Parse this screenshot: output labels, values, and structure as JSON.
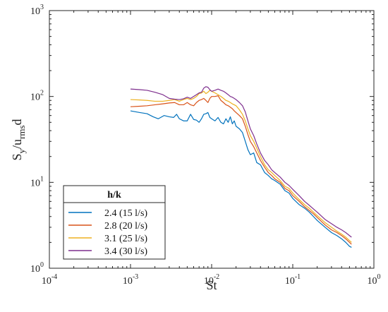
{
  "chart_data": {
    "type": "line",
    "title": "",
    "xlabel": "St",
    "ylabel": {
      "main": "S",
      "sub1": "y",
      "mid": "/u",
      "sub2": "rms",
      "tail": "d"
    },
    "xscale": "log",
    "yscale": "log",
    "xlim": [
      0.0001,
      1
    ],
    "ylim": [
      1,
      1000
    ],
    "grid": false,
    "x_ticks": [
      {
        "value": 0.0001,
        "base": "10",
        "exp": "-4"
      },
      {
        "value": 0.001,
        "base": "10",
        "exp": "-3"
      },
      {
        "value": 0.01,
        "base": "10",
        "exp": "-2"
      },
      {
        "value": 0.1,
        "base": "10",
        "exp": "-1"
      },
      {
        "value": 1,
        "base": "10",
        "exp": "0"
      }
    ],
    "y_ticks": [
      {
        "value": 1,
        "base": "10",
        "exp": "0"
      },
      {
        "value": 10,
        "base": "10",
        "exp": "1"
      },
      {
        "value": 100,
        "base": "10",
        "exp": "2"
      },
      {
        "value": 1000,
        "base": "10",
        "exp": "3"
      }
    ],
    "legend": {
      "title": "h/k",
      "placement": "bottom-left",
      "entries": [
        "2.4 (15 l/s)",
        "2.8 (20 l/s)",
        "3.1 (25 l/s)",
        "3.4 (30 l/s)"
      ]
    },
    "series": [
      {
        "name": "2.4 (15 l/s)",
        "color": "#0072BD",
        "points": [
          [
            0.001,
            68
          ],
          [
            0.0013,
            65
          ],
          [
            0.0016,
            63
          ],
          [
            0.0019,
            58
          ],
          [
            0.0022,
            55
          ],
          [
            0.0026,
            60
          ],
          [
            0.003,
            58
          ],
          [
            0.0034,
            57
          ],
          [
            0.0037,
            62
          ],
          [
            0.004,
            55
          ],
          [
            0.0045,
            52
          ],
          [
            0.005,
            52
          ],
          [
            0.0055,
            62
          ],
          [
            0.006,
            54
          ],
          [
            0.0065,
            53
          ],
          [
            0.007,
            50
          ],
          [
            0.0075,
            55
          ],
          [
            0.008,
            62
          ],
          [
            0.0085,
            63
          ],
          [
            0.009,
            65
          ],
          [
            0.0095,
            57
          ],
          [
            0.01,
            55
          ],
          [
            0.011,
            52
          ],
          [
            0.012,
            57
          ],
          [
            0.013,
            50
          ],
          [
            0.014,
            48
          ],
          [
            0.015,
            55
          ],
          [
            0.016,
            50
          ],
          [
            0.017,
            58
          ],
          [
            0.018,
            48
          ],
          [
            0.019,
            52
          ],
          [
            0.02,
            45
          ],
          [
            0.022,
            42
          ],
          [
            0.024,
            38
          ],
          [
            0.026,
            30
          ],
          [
            0.028,
            24
          ],
          [
            0.03,
            21
          ],
          [
            0.033,
            22
          ],
          [
            0.036,
            17
          ],
          [
            0.04,
            16
          ],
          [
            0.045,
            13
          ],
          [
            0.05,
            12
          ],
          [
            0.055,
            11
          ],
          [
            0.06,
            10.5
          ],
          [
            0.07,
            9.5
          ],
          [
            0.08,
            8
          ],
          [
            0.09,
            7.5
          ],
          [
            0.1,
            6.5
          ],
          [
            0.12,
            5.5
          ],
          [
            0.14,
            5
          ],
          [
            0.16,
            4.5
          ],
          [
            0.18,
            4
          ],
          [
            0.2,
            3.6
          ],
          [
            0.25,
            3
          ],
          [
            0.3,
            2.6
          ],
          [
            0.35,
            2.4
          ],
          [
            0.4,
            2.2
          ],
          [
            0.45,
            2.0
          ],
          [
            0.5,
            1.8
          ],
          [
            0.53,
            1.75
          ]
        ]
      },
      {
        "name": "2.8 (20 l/s)",
        "color": "#D95319",
        "points": [
          [
            0.001,
            76
          ],
          [
            0.0013,
            77
          ],
          [
            0.0016,
            78
          ],
          [
            0.002,
            80
          ],
          [
            0.0025,
            82
          ],
          [
            0.003,
            84
          ],
          [
            0.0035,
            85
          ],
          [
            0.004,
            80
          ],
          [
            0.0045,
            80
          ],
          [
            0.005,
            85
          ],
          [
            0.0055,
            80
          ],
          [
            0.006,
            78
          ],
          [
            0.0065,
            85
          ],
          [
            0.007,
            90
          ],
          [
            0.0075,
            92
          ],
          [
            0.008,
            95
          ],
          [
            0.0085,
            90
          ],
          [
            0.009,
            85
          ],
          [
            0.0095,
            95
          ],
          [
            0.01,
            100
          ],
          [
            0.011,
            100
          ],
          [
            0.012,
            102
          ],
          [
            0.013,
            90
          ],
          [
            0.014,
            85
          ],
          [
            0.015,
            80
          ],
          [
            0.016,
            78
          ],
          [
            0.017,
            75
          ],
          [
            0.018,
            72
          ],
          [
            0.019,
            68
          ],
          [
            0.02,
            65
          ],
          [
            0.022,
            60
          ],
          [
            0.024,
            55
          ],
          [
            0.026,
            45
          ],
          [
            0.028,
            36
          ],
          [
            0.03,
            30
          ],
          [
            0.033,
            26
          ],
          [
            0.036,
            22
          ],
          [
            0.04,
            18
          ],
          [
            0.045,
            15
          ],
          [
            0.05,
            13
          ],
          [
            0.055,
            12
          ],
          [
            0.06,
            11
          ],
          [
            0.07,
            10
          ],
          [
            0.08,
            8.5
          ],
          [
            0.09,
            8
          ],
          [
            0.1,
            7
          ],
          [
            0.12,
            6
          ],
          [
            0.14,
            5.2
          ],
          [
            0.16,
            4.7
          ],
          [
            0.18,
            4.3
          ],
          [
            0.2,
            3.9
          ],
          [
            0.25,
            3.2
          ],
          [
            0.3,
            2.8
          ],
          [
            0.35,
            2.6
          ],
          [
            0.4,
            2.4
          ],
          [
            0.45,
            2.2
          ],
          [
            0.5,
            2.0
          ],
          [
            0.53,
            1.9
          ]
        ]
      },
      {
        "name": "3.1 (25 l/s)",
        "color": "#EDB120",
        "points": [
          [
            0.001,
            92
          ],
          [
            0.0013,
            91
          ],
          [
            0.0016,
            90
          ],
          [
            0.002,
            88
          ],
          [
            0.0025,
            88
          ],
          [
            0.003,
            90
          ],
          [
            0.0035,
            92
          ],
          [
            0.004,
            88
          ],
          [
            0.0045,
            92
          ],
          [
            0.005,
            95
          ],
          [
            0.0055,
            92
          ],
          [
            0.006,
            95
          ],
          [
            0.0065,
            100
          ],
          [
            0.007,
            108
          ],
          [
            0.0075,
            110
          ],
          [
            0.008,
            115
          ],
          [
            0.0085,
            108
          ],
          [
            0.009,
            112
          ],
          [
            0.0095,
            118
          ],
          [
            0.01,
            115
          ],
          [
            0.011,
            110
          ],
          [
            0.012,
            105
          ],
          [
            0.013,
            100
          ],
          [
            0.014,
            95
          ],
          [
            0.015,
            90
          ],
          [
            0.016,
            88
          ],
          [
            0.017,
            85
          ],
          [
            0.018,
            82
          ],
          [
            0.019,
            80
          ],
          [
            0.02,
            78
          ],
          [
            0.022,
            70
          ],
          [
            0.024,
            62
          ],
          [
            0.026,
            52
          ],
          [
            0.028,
            42
          ],
          [
            0.03,
            35
          ],
          [
            0.033,
            30
          ],
          [
            0.036,
            25
          ],
          [
            0.04,
            20
          ],
          [
            0.045,
            16
          ],
          [
            0.05,
            14
          ],
          [
            0.055,
            13
          ],
          [
            0.06,
            12
          ],
          [
            0.07,
            10.5
          ],
          [
            0.08,
            9
          ],
          [
            0.09,
            8.5
          ],
          [
            0.1,
            7.5
          ],
          [
            0.12,
            6.3
          ],
          [
            0.14,
            5.5
          ],
          [
            0.16,
            5
          ],
          [
            0.18,
            4.5
          ],
          [
            0.2,
            4.1
          ],
          [
            0.25,
            3.4
          ],
          [
            0.3,
            3.0
          ],
          [
            0.35,
            2.7
          ],
          [
            0.4,
            2.5
          ],
          [
            0.45,
            2.3
          ],
          [
            0.5,
            2.1
          ],
          [
            0.53,
            2.0
          ]
        ]
      },
      {
        "name": "3.4 (30 l/s)",
        "color": "#7E2F8E",
        "points": [
          [
            0.001,
            122
          ],
          [
            0.0013,
            120
          ],
          [
            0.0016,
            118
          ],
          [
            0.002,
            112
          ],
          [
            0.0025,
            105
          ],
          [
            0.003,
            95
          ],
          [
            0.0035,
            93
          ],
          [
            0.004,
            92
          ],
          [
            0.0045,
            94
          ],
          [
            0.005,
            98
          ],
          [
            0.0055,
            95
          ],
          [
            0.006,
            100
          ],
          [
            0.0065,
            105
          ],
          [
            0.007,
            110
          ],
          [
            0.0075,
            112
          ],
          [
            0.008,
            125
          ],
          [
            0.0085,
            130
          ],
          [
            0.009,
            128
          ],
          [
            0.0095,
            120
          ],
          [
            0.01,
            115
          ],
          [
            0.011,
            118
          ],
          [
            0.012,
            122
          ],
          [
            0.013,
            118
          ],
          [
            0.014,
            115
          ],
          [
            0.015,
            110
          ],
          [
            0.016,
            105
          ],
          [
            0.017,
            100
          ],
          [
            0.018,
            98
          ],
          [
            0.019,
            95
          ],
          [
            0.02,
            92
          ],
          [
            0.022,
            85
          ],
          [
            0.024,
            78
          ],
          [
            0.026,
            66
          ],
          [
            0.028,
            52
          ],
          [
            0.03,
            42
          ],
          [
            0.033,
            35
          ],
          [
            0.036,
            28
          ],
          [
            0.04,
            22
          ],
          [
            0.045,
            18
          ],
          [
            0.05,
            16
          ],
          [
            0.055,
            14
          ],
          [
            0.06,
            13
          ],
          [
            0.07,
            11.5
          ],
          [
            0.08,
            10
          ],
          [
            0.09,
            9.2
          ],
          [
            0.1,
            8.3
          ],
          [
            0.12,
            7
          ],
          [
            0.14,
            6
          ],
          [
            0.16,
            5.4
          ],
          [
            0.18,
            4.9
          ],
          [
            0.2,
            4.5
          ],
          [
            0.25,
            3.7
          ],
          [
            0.3,
            3.3
          ],
          [
            0.35,
            3.0
          ],
          [
            0.4,
            2.8
          ],
          [
            0.45,
            2.6
          ],
          [
            0.5,
            2.4
          ],
          [
            0.53,
            2.3
          ]
        ]
      }
    ]
  }
}
